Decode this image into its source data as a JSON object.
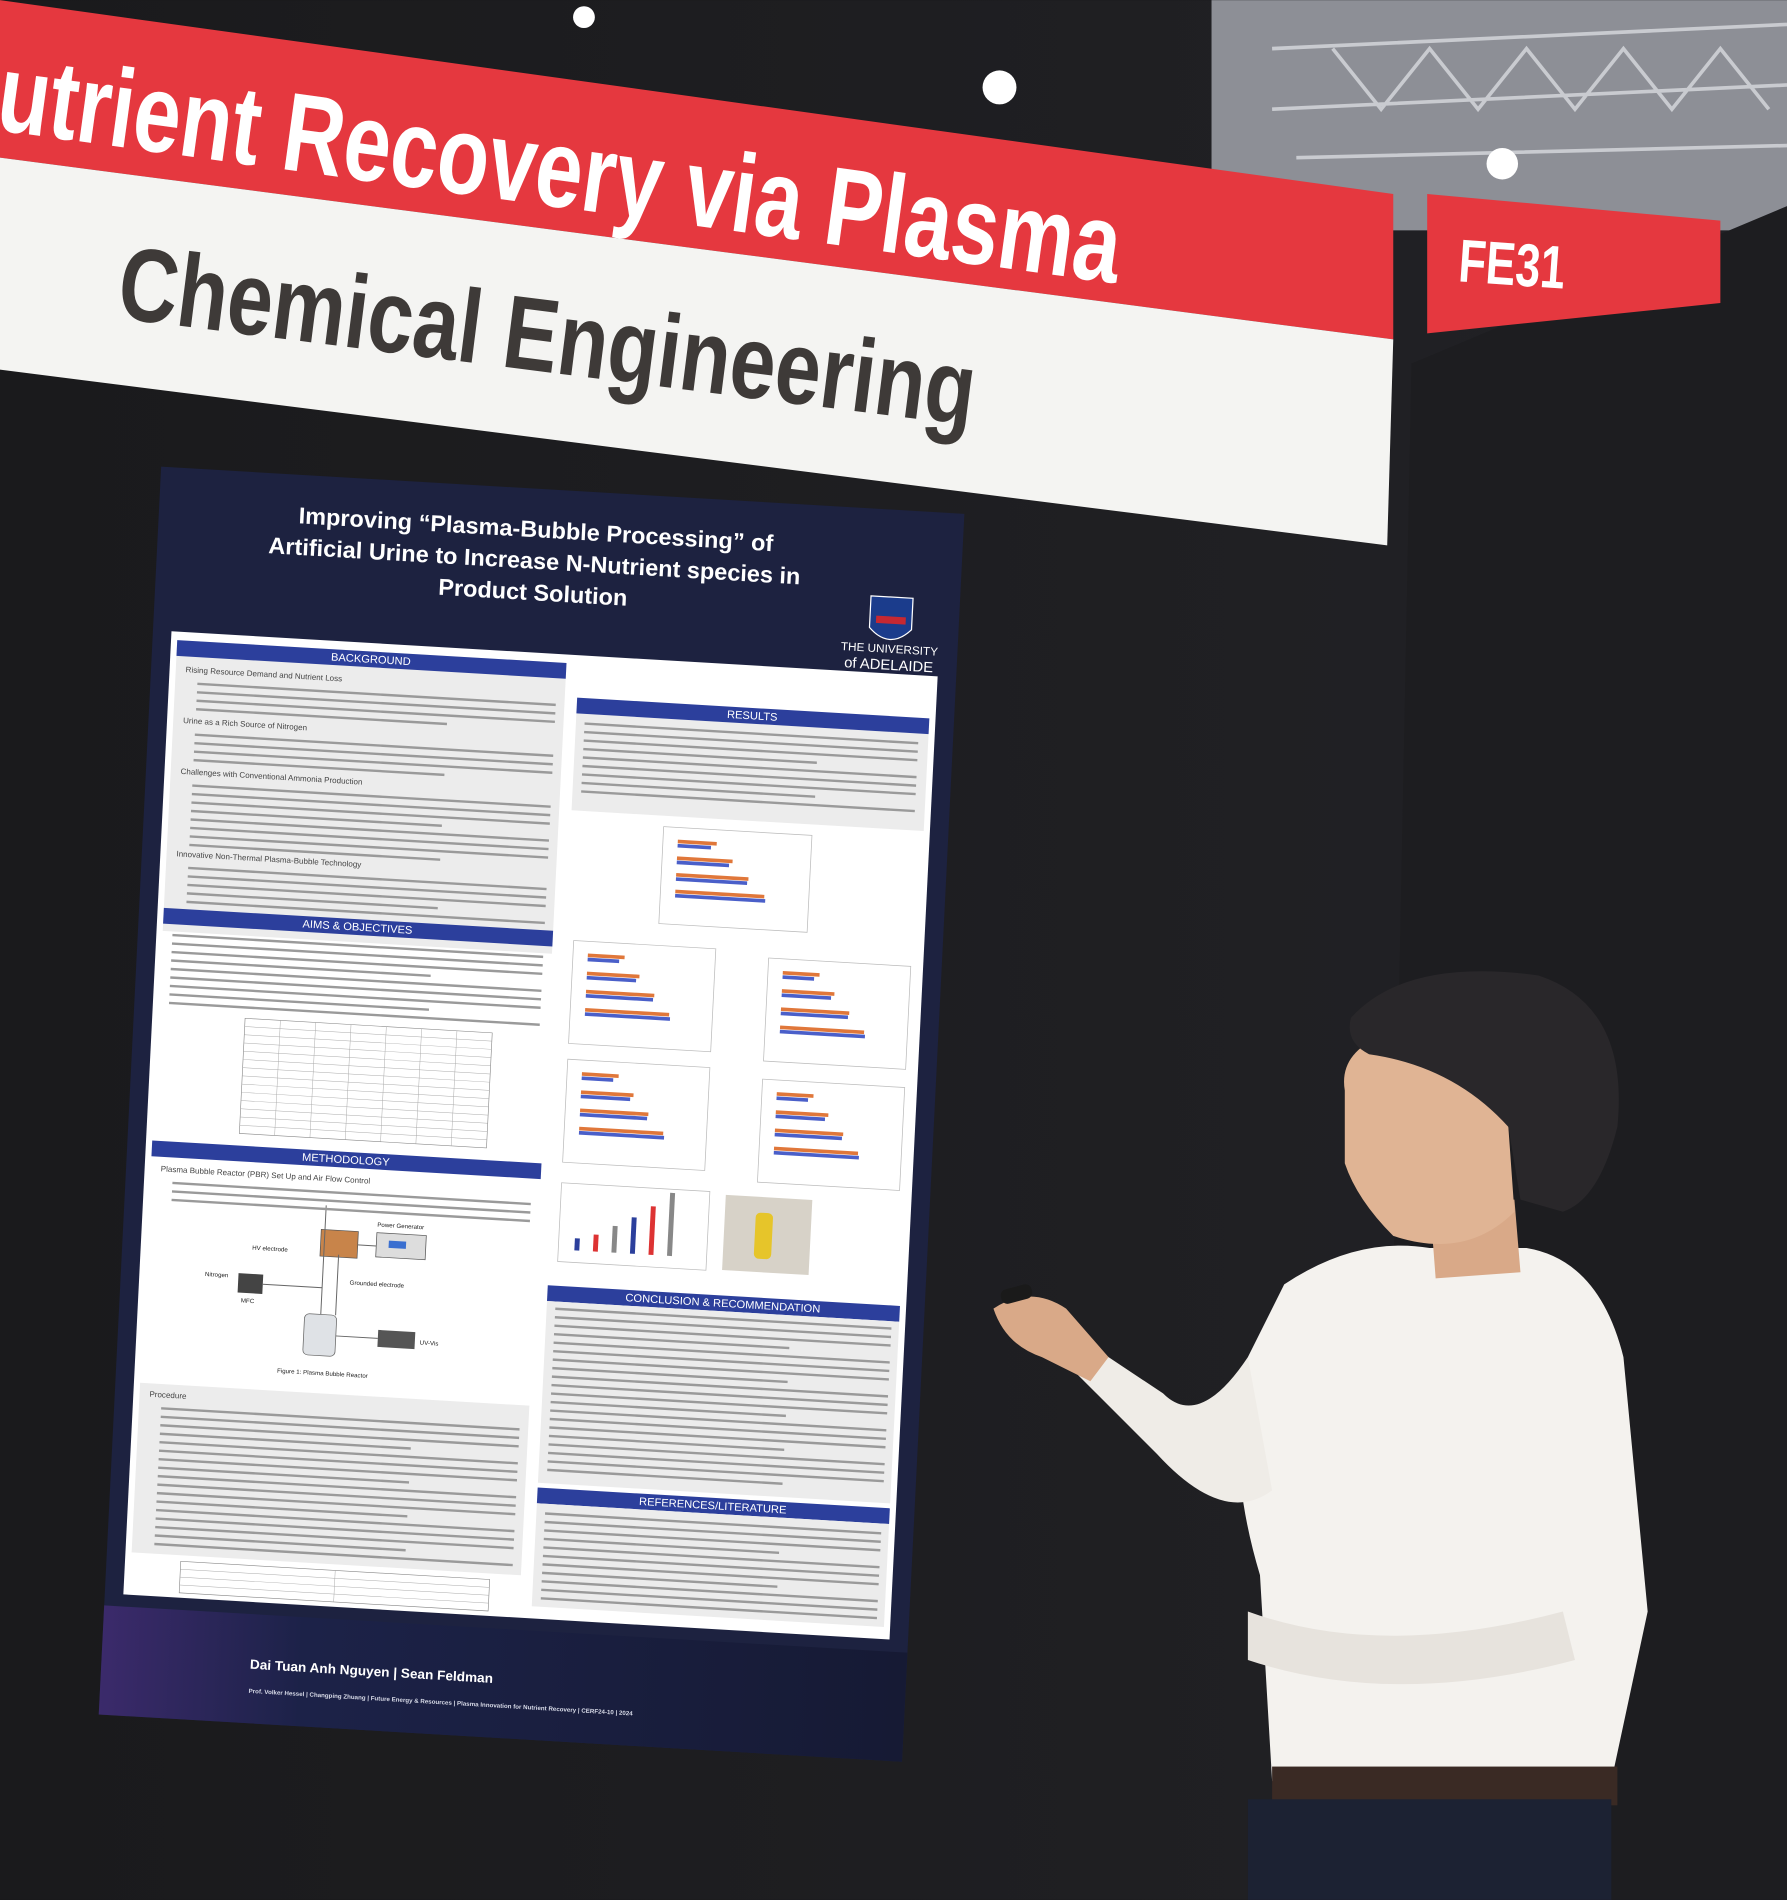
{
  "banner": {
    "title": "Nutrient Recovery via Plasma",
    "subtitle": "Chemical Engineering",
    "booth": "FE31"
  },
  "poster": {
    "title": [
      "Improving “Plasma-Bubble Processing” of",
      "Artificial Urine to Increase N-Nutrient species in",
      "Product Solution"
    ],
    "logo": [
      "THE UNIVERSITY",
      "of ADELAIDE"
    ],
    "background": {
      "heading": "BACKGROUND",
      "points": [
        "Rising Resource Demand and Nutrient Loss",
        "Urine as a Rich Source of Nitrogen",
        "Challenges with Conventional Ammonia Production",
        "Innovative Non-Thermal Plasma-Bubble Technology"
      ]
    },
    "aims": {
      "heading": "AIMS & OBJECTIVES"
    },
    "methodology": {
      "heading": "METHODOLOGY",
      "points": [
        "Plasma Bubble Reactor (PBR) Set Up and Air Flow Control",
        "Procedure"
      ],
      "diagram": [
        "Power Generator",
        "HV electrode",
        "Nitrogen",
        "MFC",
        "Grounded electrode",
        "UV-Vis"
      ],
      "caption": "Figure 1: Plasma Bubble Reactor"
    },
    "results": {
      "heading": "RESULTS"
    },
    "conclusion": {
      "heading": "CONCLUSION & RECOMMENDATION"
    },
    "references": {
      "heading": "REFERENCES/LITERATURE"
    },
    "authors": "Dai Tuan Anh Nguyen | Sean Feldman",
    "footer": "Prof. Volker Hessel | Changping Zhuang | Future Energy & Resources | Plasma Innovation for Nutrient Recovery | CERF24-10 | 2024"
  }
}
